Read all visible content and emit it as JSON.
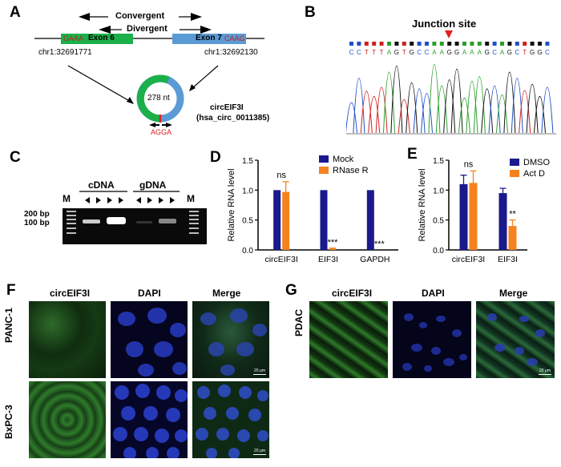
{
  "panels": {
    "A": "A",
    "B": "B",
    "C": "C",
    "D": "D",
    "E": "E",
    "F": "F",
    "G": "G"
  },
  "panelA": {
    "convergent": "Convergent",
    "divergent": "Divergent",
    "exon6": "Exon 6",
    "exon7": "Exon 7",
    "seq_left": "GAAA",
    "seq_right": "CAAG",
    "coord_left": "chr1:32691771",
    "coord_right": "chr1:32692130",
    "circ_size": "278 nt",
    "junction_seq": "AGGA",
    "circ_name": "circEIF3I",
    "circ_id": "(hsa_circ_0011385)",
    "colors": {
      "exon6": "#1bb04a",
      "exon7": "#5b9bd5",
      "junction": "#e02020"
    }
  },
  "panelB": {
    "title": "Junction site",
    "sequence": "CCTTTAGTGCCAAGGAAAGCAGCTGGC",
    "colors": {
      "A": "#2aa02a",
      "C": "#2050c8",
      "G": "#111111",
      "T": "#d02020"
    }
  },
  "panelC": {
    "cdna": "cDNA",
    "gdna": "gDNA",
    "marker": "M",
    "size_200": "200 bp",
    "size_100": "100 bp"
  },
  "panelF": {
    "circ": "circEIF3I",
    "dapi": "DAPI",
    "merge": "Merge",
    "row1": "PANC-1",
    "row2": "BxPC-3",
    "scale": "20 μm"
  },
  "panelG": {
    "circ": "circEIF3I",
    "dapi": "DAPI",
    "merge": "Merge",
    "row1": "PDAC",
    "scale": "20 μm"
  },
  "chart_data": [
    {
      "type": "bar",
      "panel": "D",
      "ylabel": "Relative RNA level",
      "categories": [
        "circEIF3I",
        "EIF3I",
        "GAPDH"
      ],
      "ylim": [
        0,
        1.5
      ],
      "yticks": [
        "0.0",
        "0.5",
        "1.0",
        "1.5"
      ],
      "series": [
        {
          "name": "Mock",
          "color": "#1a1a8c",
          "values": [
            1.0,
            1.0,
            1.0
          ],
          "errors": [
            0,
            0,
            0
          ]
        },
        {
          "name": "RNase R",
          "color": "#f5821f",
          "values": [
            0.97,
            0.02,
            0.0
          ],
          "errors": [
            0.17,
            0.01,
            0
          ]
        }
      ],
      "annotations": [
        "ns",
        "***",
        "***"
      ],
      "legend": "top-right"
    },
    {
      "type": "bar",
      "panel": "E",
      "ylabel": "Relative RNA level",
      "categories": [
        "circEIF3I",
        "EIF3I"
      ],
      "ylim": [
        0,
        1.5
      ],
      "yticks": [
        "0.0",
        "0.5",
        "1.0",
        "1.5"
      ],
      "series": [
        {
          "name": "DMSO",
          "color": "#1a1a8c",
          "values": [
            1.1,
            0.95
          ],
          "errors": [
            0.15,
            0.08
          ]
        },
        {
          "name": "Act D",
          "color": "#f5821f",
          "values": [
            1.12,
            0.4
          ],
          "errors": [
            0.2,
            0.1
          ]
        }
      ],
      "annotations": [
        "ns",
        "**"
      ],
      "legend": "top-right"
    }
  ]
}
